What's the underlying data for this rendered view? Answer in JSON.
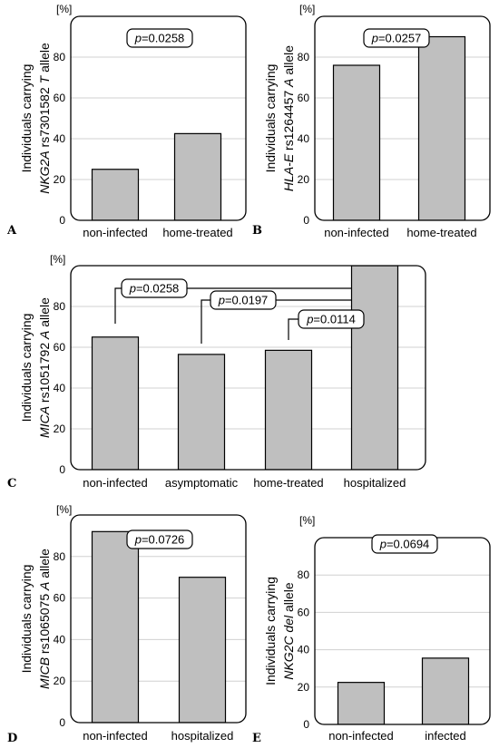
{
  "chart_data": [
    {
      "type": "bar",
      "panel": "A",
      "unit": "[%]",
      "ylabel_line1": "Individuals carrying",
      "ylabel_line2": "NKG2A rs7301582 T allele",
      "ylim": [
        0,
        100
      ],
      "yticks": [
        0,
        20,
        40,
        60,
        80
      ],
      "grid": true,
      "categories": [
        "non-infected",
        "home-treated"
      ],
      "values": [
        25,
        42.5
      ],
      "annotations": [
        {
          "text": "p=0.0258",
          "type": "box"
        }
      ]
    },
    {
      "type": "bar",
      "panel": "B",
      "unit": "[%]",
      "ylabel_line1": "Individuals carrying",
      "ylabel_line2": "HLA-E rs1264457 A allele",
      "ylim": [
        0,
        100
      ],
      "yticks": [
        0,
        20,
        40,
        60,
        80
      ],
      "grid": true,
      "categories": [
        "non-infected",
        "home-treated"
      ],
      "values": [
        76,
        90
      ],
      "annotations": [
        {
          "text": "p=0.0257",
          "type": "box"
        }
      ]
    },
    {
      "type": "bar",
      "panel": "C",
      "unit": "[%]",
      "ylabel_line1": "Individuals carrying",
      "ylabel_line2": "MICA rs1051792 A allele",
      "ylim": [
        0,
        100
      ],
      "yticks": [
        0,
        20,
        40,
        60,
        80
      ],
      "grid": true,
      "categories": [
        "non-infected",
        "asymptomatic",
        "home-treated",
        "hospitalized"
      ],
      "values": [
        65,
        56.5,
        58.5,
        100
      ],
      "annotations": [
        {
          "text": "p=0.0258",
          "type": "bracket",
          "from": 0,
          "to": 3
        },
        {
          "text": "p=0.0197",
          "type": "bracket",
          "from": 1,
          "to": 3
        },
        {
          "text": "p=0.0114",
          "type": "bracket",
          "from": 2,
          "to": 3
        }
      ]
    },
    {
      "type": "bar",
      "panel": "D",
      "unit": "[%]",
      "ylabel_line1": "Individuals carrying",
      "ylabel_line2": "MICB rs1065075 A allele",
      "ylim": [
        0,
        100
      ],
      "yticks": [
        0,
        20,
        40,
        60,
        80
      ],
      "grid": true,
      "categories": [
        "non-infected",
        "hospitalized"
      ],
      "values": [
        92,
        70
      ],
      "annotations": [
        {
          "text": "p=0.0726",
          "type": "box"
        }
      ]
    },
    {
      "type": "bar",
      "panel": "E",
      "unit": "[%]",
      "ylabel_line1": "Individuals carrying",
      "ylabel_line2": "NKG2C del allele",
      "ylim": [
        0,
        100
      ],
      "yticks": [
        0,
        20,
        40,
        60,
        80
      ],
      "grid": true,
      "categories": [
        "non-infected",
        "infected"
      ],
      "values": [
        22.5,
        35.5
      ],
      "annotations": [
        {
          "text": "p=0.0694",
          "type": "box"
        }
      ]
    }
  ],
  "colors": {
    "bar": "#bfbfbf",
    "frame": "#000000",
    "grid": "#d0d0d0"
  }
}
